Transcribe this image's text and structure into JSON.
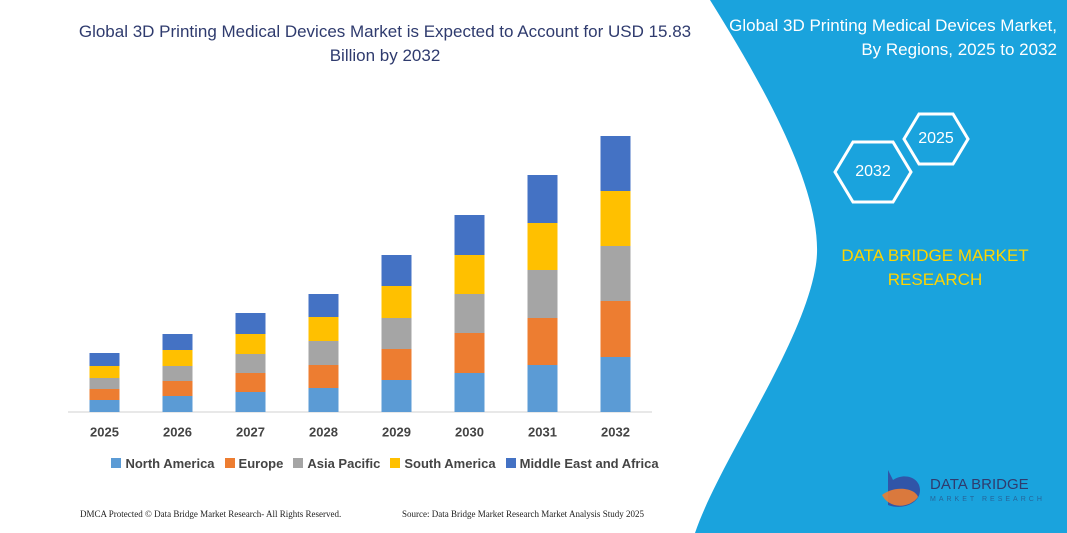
{
  "chart_data": {
    "type": "bar",
    "stacked": true,
    "title": "Global 3D Printing Medical Devices Market is Expected to Account for USD 15.83 Billion by 2032",
    "categories": [
      "2025",
      "2026",
      "2027",
      "2028",
      "2029",
      "2030",
      "2031",
      "2032"
    ],
    "series": [
      {
        "name": "North America",
        "color": "#5b9bd5",
        "values": [
          12,
          16,
          20,
          24,
          32,
          39,
          47,
          55
        ]
      },
      {
        "name": "Europe",
        "color": "#ed7d31",
        "values": [
          11,
          15,
          19,
          23,
          31,
          40,
          47,
          56
        ]
      },
      {
        "name": "Asia Pacific",
        "color": "#a5a5a5",
        "values": [
          11,
          15,
          19,
          24,
          31,
          39,
          48,
          55
        ]
      },
      {
        "name": "South America",
        "color": "#ffc000",
        "values": [
          12,
          16,
          20,
          24,
          32,
          39,
          47,
          55
        ]
      },
      {
        "name": "Middle East and Africa",
        "color": "#4472c4",
        "values": [
          13,
          16,
          21,
          23,
          31,
          40,
          48,
          55
        ]
      }
    ],
    "legend": "bottom"
  },
  "side_panel": {
    "title": "Global 3D Printing Medical Devices Market, By Regions, 2025 to 2032",
    "hexagons": [
      "2032",
      "2025"
    ],
    "brand": "DATA BRIDGE MARKET RESEARCH"
  },
  "logo": {
    "name": "DATA BRIDGE",
    "tagline": "MARKET RESEARCH"
  },
  "footer": {
    "rights": "DMCA Protected © Data Bridge Market Research- All Rights Reserved.",
    "source": "Source: Data Bridge Market Research Market Analysis Study 2025"
  }
}
